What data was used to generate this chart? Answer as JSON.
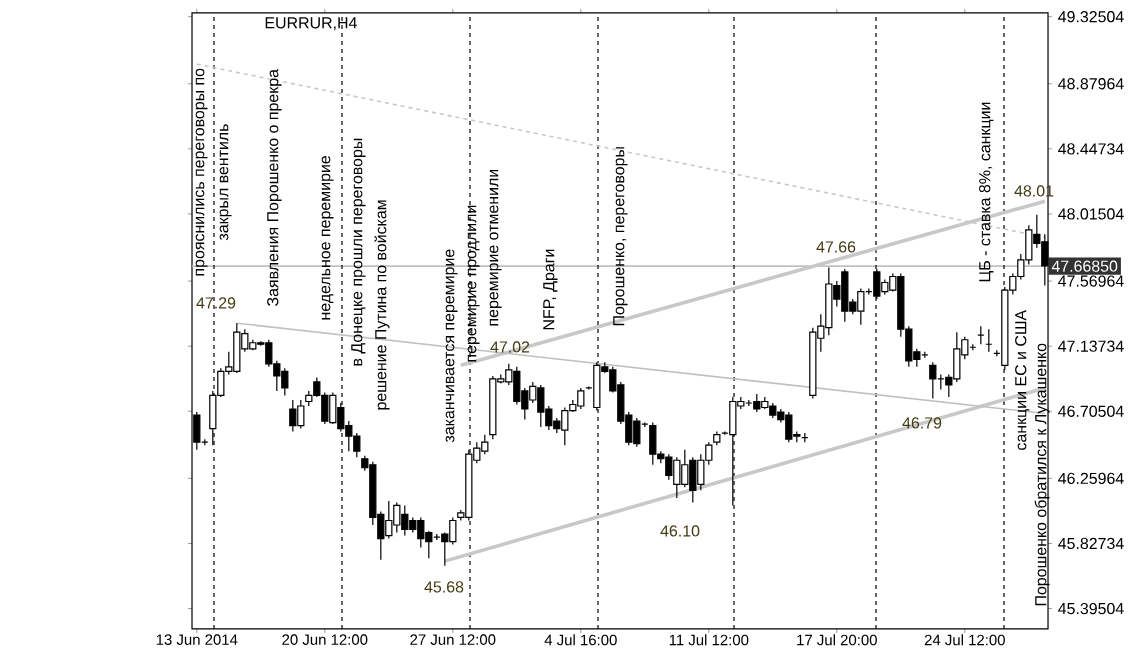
{
  "chart_data": {
    "type": "candlestick",
    "title": "EURRUR,H4",
    "categories": [
      "13 Jun 2014",
      null,
      null,
      null,
      null,
      null,
      null,
      null,
      null,
      null,
      null,
      null,
      null,
      null,
      null,
      null,
      "20 Jun 12:00",
      null,
      null,
      null,
      null,
      null,
      null,
      null,
      null,
      null,
      null,
      null,
      null,
      null,
      null,
      null,
      "27 Jun 12:00",
      null,
      null,
      null,
      null,
      null,
      null,
      null,
      null,
      null,
      null,
      null,
      null,
      null,
      null,
      null,
      "4 Jul 16:00",
      null,
      null,
      null,
      null,
      null,
      null,
      null,
      null,
      null,
      null,
      null,
      null,
      null,
      null,
      null,
      "11 Jul 12:00",
      null,
      null,
      null,
      null,
      null,
      null,
      null,
      null,
      null,
      null,
      null,
      null,
      null,
      null,
      null,
      "17 Jul 20:00",
      null,
      null,
      null,
      null,
      null,
      null,
      null,
      null,
      null,
      null,
      null,
      null,
      null,
      null,
      null,
      "24 Jul 12:00",
      null,
      null,
      null,
      null,
      null,
      null,
      null,
      null,
      null,
      null
    ],
    "ohlc": [
      [
        46.68,
        46.7,
        46.45,
        46.5
      ],
      [
        46.5,
        46.52,
        46.48,
        46.5
      ],
      [
        46.59,
        46.84,
        46.48,
        46.81
      ],
      [
        46.81,
        46.99,
        46.8,
        46.97
      ],
      [
        46.97,
        47.1,
        46.95,
        47.0
      ],
      [
        46.97,
        47.29,
        46.96,
        47.23
      ],
      [
        47.12,
        47.25,
        47.1,
        47.22
      ],
      [
        47.12,
        47.18,
        47.11,
        47.16
      ],
      [
        47.16,
        47.17,
        47.14,
        47.15
      ],
      [
        47.16,
        47.18,
        47.0,
        47.02
      ],
      [
        47.02,
        47.04,
        46.84,
        46.94
      ],
      [
        46.97,
        46.99,
        46.81,
        46.86
      ],
      [
        46.72,
        46.78,
        46.57,
        46.61
      ],
      [
        46.61,
        46.78,
        46.59,
        46.74
      ],
      [
        46.77,
        46.84,
        46.74,
        46.81
      ],
      [
        46.9,
        46.93,
        46.8,
        46.81
      ],
      [
        46.81,
        46.83,
        46.62,
        46.64
      ],
      [
        46.63,
        46.83,
        46.62,
        46.81
      ],
      [
        46.73,
        46.76,
        46.57,
        46.59
      ],
      [
        46.61,
        46.64,
        46.44,
        46.54
      ],
      [
        46.54,
        46.56,
        46.4,
        46.44
      ],
      [
        46.39,
        46.41,
        46.31,
        46.33
      ],
      [
        46.35,
        46.37,
        45.95,
        46.0
      ],
      [
        46.02,
        46.04,
        45.72,
        45.86
      ],
      [
        45.88,
        46.11,
        45.86,
        45.98
      ],
      [
        45.95,
        46.1,
        45.9,
        46.08
      ],
      [
        46.02,
        46.08,
        45.88,
        45.92
      ],
      [
        45.98,
        46.0,
        45.9,
        45.92
      ],
      [
        45.98,
        46.0,
        45.8,
        45.86
      ],
      [
        45.9,
        45.91,
        45.73,
        45.84
      ],
      [
        45.87,
        45.89,
        45.85,
        45.87
      ],
      [
        45.89,
        45.9,
        45.68,
        45.84
      ],
      [
        45.84,
        46.0,
        45.82,
        45.98
      ],
      [
        46.0,
        46.05,
        45.98,
        46.03
      ],
      [
        46.0,
        46.45,
        45.98,
        46.42
      ],
      [
        46.38,
        46.5,
        46.36,
        46.46
      ],
      [
        46.44,
        46.55,
        46.42,
        46.5
      ],
      [
        46.55,
        46.94,
        46.52,
        46.92
      ],
      [
        46.9,
        46.95,
        46.89,
        46.92
      ],
      [
        46.9,
        47.02,
        46.88,
        46.98
      ],
      [
        46.97,
        47.0,
        46.75,
        46.77
      ],
      [
        46.84,
        46.86,
        46.65,
        46.72
      ],
      [
        46.78,
        46.9,
        46.76,
        46.87
      ],
      [
        46.86,
        46.88,
        46.6,
        46.7
      ],
      [
        46.72,
        46.74,
        46.58,
        46.61
      ],
      [
        46.64,
        46.66,
        46.56,
        46.59
      ],
      [
        46.58,
        46.73,
        46.48,
        46.71
      ],
      [
        46.71,
        46.78,
        46.7,
        46.75
      ],
      [
        46.74,
        46.86,
        46.72,
        46.84
      ],
      [
        46.86,
        46.87,
        46.85,
        46.86
      ],
      [
        46.73,
        47.03,
        46.71,
        47.01
      ],
      [
        47.0,
        47.03,
        46.96,
        46.97
      ],
      [
        46.98,
        47.0,
        46.83,
        46.84
      ],
      [
        46.88,
        46.9,
        46.62,
        46.64
      ],
      [
        46.68,
        46.7,
        46.48,
        46.5
      ],
      [
        46.64,
        46.66,
        46.47,
        46.49
      ],
      [
        46.62,
        46.63,
        46.6,
        46.62
      ],
      [
        46.61,
        46.63,
        46.35,
        46.42
      ],
      [
        46.42,
        46.44,
        46.36,
        46.39
      ],
      [
        46.4,
        46.42,
        46.25,
        46.28
      ],
      [
        46.22,
        46.4,
        46.13,
        46.38
      ],
      [
        46.22,
        46.45,
        46.2,
        46.35
      ],
      [
        46.38,
        46.4,
        46.1,
        46.18
      ],
      [
        46.22,
        46.42,
        46.18,
        46.38
      ],
      [
        46.38,
        46.5,
        46.35,
        46.48
      ],
      [
        46.5,
        46.57,
        46.48,
        46.55
      ],
      [
        46.56,
        46.57,
        46.55,
        46.56
      ],
      [
        46.55,
        46.8,
        46.08,
        46.77
      ],
      [
        46.74,
        46.8,
        46.72,
        46.77
      ],
      [
        46.76,
        46.78,
        46.74,
        46.76
      ],
      [
        46.77,
        46.82,
        46.7,
        46.72
      ],
      [
        46.73,
        46.8,
        46.72,
        46.77
      ],
      [
        46.74,
        46.76,
        46.66,
        46.68
      ],
      [
        46.7,
        46.72,
        46.63,
        46.65
      ],
      [
        46.68,
        46.7,
        46.5,
        46.52
      ],
      [
        46.55,
        46.57,
        46.5,
        46.54
      ],
      [
        46.53,
        46.56,
        46.5,
        46.53
      ],
      [
        46.81,
        47.26,
        46.79,
        47.23
      ],
      [
        47.19,
        47.35,
        47.1,
        47.27
      ],
      [
        47.26,
        47.66,
        47.21,
        47.55
      ],
      [
        47.54,
        47.57,
        47.4,
        47.45
      ],
      [
        47.63,
        47.65,
        47.3,
        47.37
      ],
      [
        47.43,
        47.45,
        47.35,
        47.37
      ],
      [
        47.37,
        47.52,
        47.28,
        47.5
      ],
      [
        47.5,
        47.52,
        47.48,
        47.5
      ],
      [
        47.63,
        47.65,
        47.45,
        47.47
      ],
      [
        47.5,
        47.58,
        47.48,
        47.56
      ],
      [
        47.51,
        47.62,
        47.5,
        47.6
      ],
      [
        47.6,
        47.62,
        47.2,
        47.25
      ],
      [
        47.25,
        47.27,
        47.0,
        47.04
      ],
      [
        47.1,
        47.12,
        47.0,
        47.05
      ],
      [
        47.08,
        47.1,
        47.06,
        47.08
      ],
      [
        47.01,
        47.03,
        46.79,
        46.92
      ],
      [
        46.92,
        46.95,
        46.85,
        46.92
      ],
      [
        46.93,
        46.95,
        46.8,
        46.88
      ],
      [
        46.92,
        47.23,
        46.9,
        47.12
      ],
      [
        47.08,
        47.2,
        47.05,
        47.18
      ],
      [
        47.13,
        47.15,
        47.11,
        47.13
      ],
      [
        47.21,
        47.27,
        47.15,
        47.21
      ],
      [
        47.15,
        47.25,
        47.1,
        47.15
      ],
      [
        47.09,
        47.11,
        47.07,
        47.09
      ],
      [
        47.01,
        47.53,
        46.98,
        47.51
      ],
      [
        47.51,
        47.62,
        47.48,
        47.6
      ],
      [
        47.6,
        47.75,
        47.58,
        47.71
      ],
      [
        47.71,
        47.94,
        47.68,
        47.91
      ],
      [
        47.88,
        48.01,
        47.79,
        47.82
      ],
      [
        47.83,
        47.88,
        47.54,
        47.67
      ]
    ],
    "series": [
      {
        "type": "line",
        "color": "#c8c8c8",
        "values": [
          null,
          null,
          null,
          null,
          null,
          null,
          null,
          null,
          null,
          null,
          null,
          null,
          null,
          null,
          null,
          null,
          null,
          null,
          null,
          null,
          null,
          null,
          null,
          null,
          null,
          null,
          null,
          null,
          null,
          null,
          null,
          null,
          null,
          47.01,
          null,
          null,
          null,
          null,
          null,
          null,
          null,
          null,
          null,
          null,
          null,
          null,
          null,
          null,
          null,
          null,
          null,
          null,
          null,
          null,
          null,
          null,
          null,
          null,
          null,
          null,
          null,
          null,
          null,
          null,
          null,
          null,
          null,
          null,
          null,
          null,
          null,
          null,
          null,
          null,
          null,
          null,
          null,
          null,
          null,
          null,
          null,
          null,
          null,
          null,
          null,
          null,
          null,
          null,
          null,
          null,
          null,
          null,
          null,
          null,
          null,
          null,
          null,
          null,
          null,
          null,
          null,
          null,
          null,
          null,
          null,
          null,
          48.1
        ]
      },
      {
        "type": "line",
        "color": "#c8c8c8",
        "values": [
          null,
          null,
          null,
          null,
          null,
          null,
          null,
          null,
          null,
          null,
          null,
          null,
          null,
          null,
          null,
          null,
          null,
          null,
          null,
          null,
          null,
          null,
          null,
          null,
          null,
          null,
          null,
          null,
          null,
          null,
          null,
          45.71,
          null,
          null,
          null,
          null,
          null,
          null,
          null,
          null,
          null,
          null,
          null,
          null,
          null,
          null,
          null,
          null,
          null,
          null,
          null,
          null,
          null,
          null,
          null,
          null,
          null,
          null,
          null,
          null,
          null,
          null,
          null,
          null,
          null,
          null,
          null,
          null,
          null,
          null,
          null,
          null,
          null,
          null,
          null,
          null,
          null,
          null,
          null,
          null,
          null,
          null,
          null,
          null,
          null,
          null,
          null,
          null,
          null,
          null,
          null,
          null,
          null,
          null,
          null,
          null,
          null,
          null,
          null,
          null,
          null,
          null,
          null,
          null,
          null,
          null,
          46.86
        ]
      },
      {
        "type": "line",
        "color": "#c0c0c0",
        "values": [
          null,
          null,
          null,
          null,
          null,
          47.29,
          null,
          null,
          null,
          null,
          null,
          null,
          null,
          null,
          null,
          null,
          null,
          null,
          null,
          null,
          null,
          null,
          null,
          null,
          null,
          null,
          null,
          null,
          null,
          null,
          null,
          null,
          null,
          null,
          null,
          null,
          null,
          null,
          null,
          null,
          null,
          null,
          null,
          null,
          null,
          null,
          null,
          null,
          null,
          null,
          null,
          null,
          null,
          null,
          null,
          null,
          null,
          null,
          null,
          null,
          null,
          null,
          null,
          null,
          null,
          null,
          null,
          null,
          null,
          null,
          null,
          null,
          null,
          null,
          null,
          null,
          null,
          null,
          null,
          null,
          null,
          null,
          null,
          null,
          null,
          null,
          null,
          null,
          null,
          null,
          null,
          null,
          null,
          null,
          null,
          null,
          null,
          null,
          null,
          null,
          null,
          null,
          null,
          null,
          null,
          null,
          46.69
        ]
      },
      {
        "type": "line",
        "color": "#c8c8c8",
        "line_style": "dashed",
        "values": [
          49.01,
          null,
          null,
          null,
          null,
          null,
          null,
          null,
          null,
          null,
          null,
          null,
          null,
          null,
          null,
          null,
          null,
          null,
          null,
          null,
          null,
          null,
          null,
          null,
          null,
          null,
          null,
          null,
          null,
          null,
          null,
          null,
          null,
          null,
          null,
          null,
          null,
          null,
          null,
          null,
          null,
          null,
          null,
          null,
          null,
          null,
          null,
          null,
          null,
          null,
          null,
          null,
          null,
          null,
          null,
          null,
          null,
          null,
          null,
          null,
          null,
          null,
          null,
          null,
          null,
          null,
          null,
          null,
          null,
          null,
          null,
          null,
          null,
          null,
          null,
          null,
          null,
          null,
          null,
          null,
          null,
          null,
          null,
          null,
          null,
          null,
          null,
          null,
          null,
          null,
          null,
          null,
          null,
          null,
          null,
          null,
          null,
          null,
          null,
          null,
          null,
          null,
          null,
          null,
          null,
          null,
          47.86
        ]
      }
    ],
    "ylim": [
      45.26,
      49.35
    ],
    "yticks": [
      45.39504,
      45.82734,
      46.25964,
      46.70504,
      47.13734,
      47.56964,
      48.01504,
      48.44734,
      48.87964,
      49.32504
    ],
    "ref_lines": [
      {
        "axis": "y",
        "value": 47.6685,
        "label": "47.66850",
        "color": "#c0c0c0"
      }
    ],
    "annotations": [
      "прояснились переговоры по",
      "закрыл вентиль",
      "Заявления Порошенко о прекра",
      "недельное перемирие",
      "в Донецке прошли переговоры",
      "решение Путина по войскам",
      "заканчивается перемирие",
      "перемирие продлили",
      "перемирие отменили",
      "NFP, Драги",
      "Порошенко, переговоры",
      "ЦБ - ставка 8%, санкции",
      "санкции ЕС и США",
      "Порошенко обратился к Лукашенко",
      "47.29",
      "47.02",
      "45.68",
      "46.10",
      "47.66",
      "46.79",
      "48.01"
    ],
    "grid": false
  }
}
